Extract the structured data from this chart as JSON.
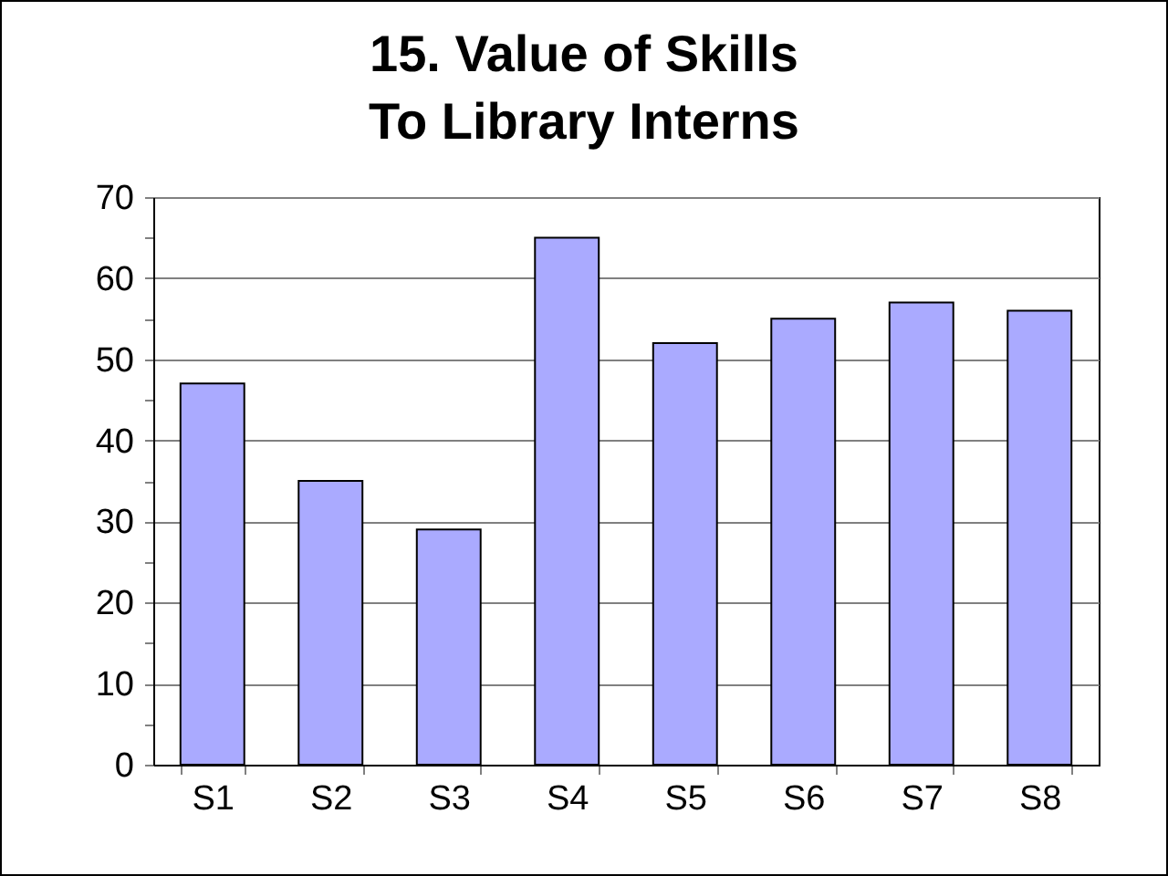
{
  "chart_data": {
    "type": "bar",
    "title": "15. Value of Skills\nTo Library Interns",
    "categories": [
      "S1",
      "S2",
      "S3",
      "S4",
      "S5",
      "S6",
      "S7",
      "S8"
    ],
    "values": [
      47,
      35,
      29,
      65,
      52,
      55,
      57,
      56
    ],
    "color": "#aaaaff",
    "ylim": [
      0,
      70
    ],
    "yticks": [
      0,
      {
        "value": 5,
        "label": null
      },
      10,
      {
        "value": 15,
        "label": null
      },
      20,
      {
        "value": 25,
        "label": null
      },
      30,
      {
        "value": 35,
        "label": null
      },
      40,
      {
        "value": 45,
        "label": null
      },
      50,
      {
        "value": 55,
        "label": null
      },
      60,
      {
        "value": 65,
        "label": null
      },
      70
    ],
    "grid": true
  }
}
